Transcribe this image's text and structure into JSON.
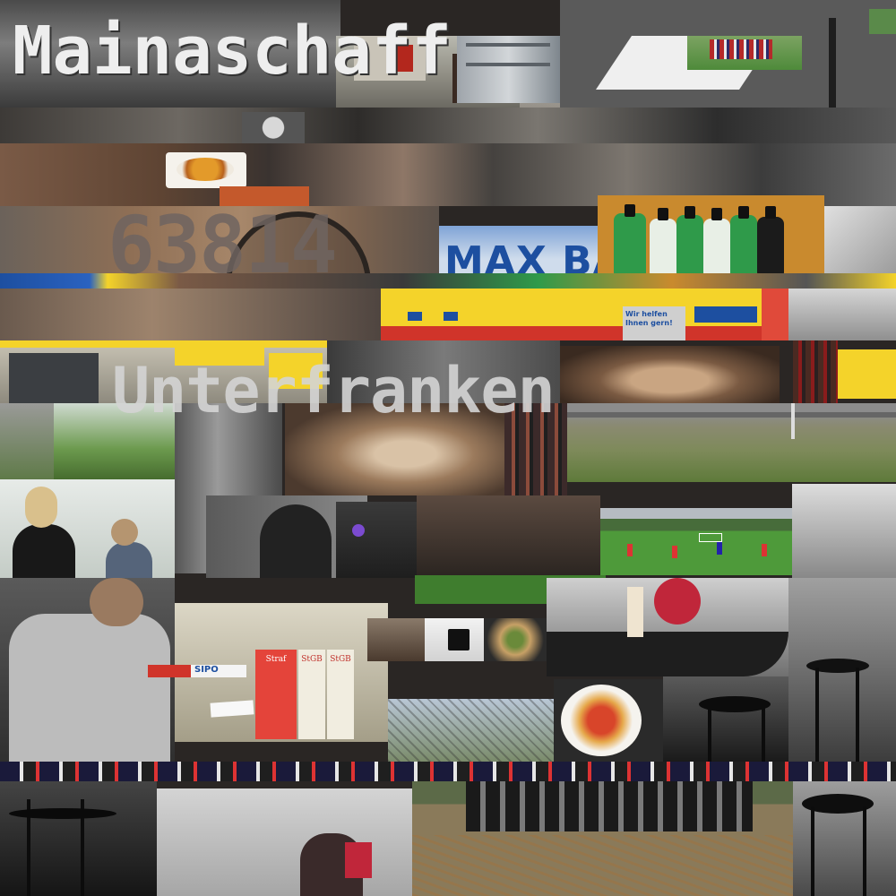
{
  "overlay": {
    "title": "Mainaschaff",
    "postcode": "63814",
    "region": "Unterfranken"
  },
  "store_sign": {
    "logo": "MAX BAHR",
    "slogan": "Wir helfen Ihnen gern!"
  },
  "books": {
    "label_red": "Straf",
    "label_white_1": "StGB",
    "label_white_2": "StGB"
  },
  "banner": {
    "sipo": "SIPO"
  },
  "colors": {
    "overlay_text": "#e8e8e8",
    "store_yellow": "#f4d32a",
    "store_blue": "#1d4fa0",
    "pitch_green": "#3f7d2e",
    "jersey_green": "#2f9a4a",
    "brick": "#8a5a3c"
  }
}
